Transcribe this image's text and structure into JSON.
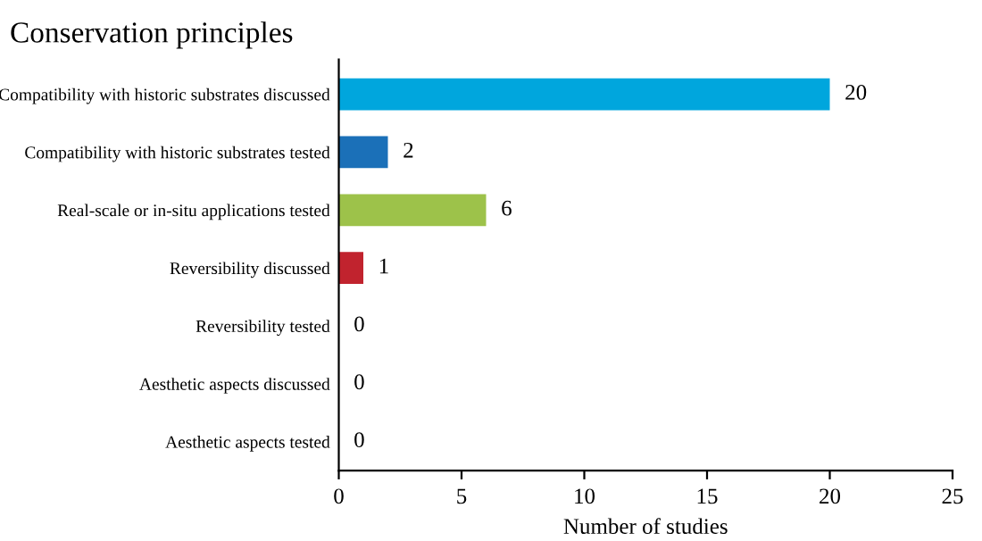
{
  "chart_data": {
    "type": "bar",
    "orientation": "horizontal",
    "title": "Conservation principles",
    "xlabel": "Number of studies",
    "categories": [
      "Compatibility with historic substrates discussed",
      "Compatibility with historic substrates tested",
      "Real-scale or in-situ applications tested",
      "Reversibility discussed",
      "Reversibility tested",
      "Aesthetic aspects discussed",
      "Aesthetic aspects tested"
    ],
    "values": [
      20,
      2,
      6,
      1,
      0,
      0,
      0
    ],
    "colors": [
      "#00a6dd",
      "#1b70b8",
      "#9dc24a",
      "#c1232e",
      "#888888",
      "#888888",
      "#888888"
    ],
    "xlim": [
      0,
      25
    ],
    "xticks": [
      0,
      5,
      10,
      15,
      20,
      25
    ],
    "data_labels": true,
    "grid": false,
    "legend": false
  }
}
